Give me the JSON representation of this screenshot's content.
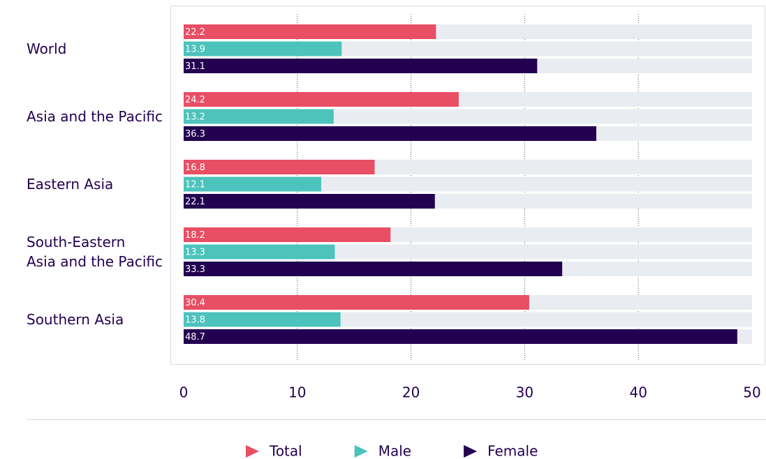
{
  "chart_data": {
    "type": "bar",
    "orientation": "horizontal",
    "categories": [
      "World",
      "Asia and the Pacific",
      "Eastern Asia",
      "South-Eastern\nAsia and the Pacific",
      "Southern Asia"
    ],
    "series": [
      {
        "name": "Total",
        "color": "#e84e64",
        "values": [
          22.2,
          24.2,
          16.8,
          18.2,
          30.4
        ]
      },
      {
        "name": "Male",
        "color": "#4cc3bc",
        "values": [
          13.9,
          13.2,
          12.1,
          13.3,
          13.8
        ]
      },
      {
        "name": "Female",
        "color": "#230050",
        "values": [
          31.1,
          36.3,
          22.1,
          33.3,
          48.7
        ]
      }
    ],
    "xlim": [
      0,
      50
    ],
    "xticks": [
      0,
      10,
      20,
      30,
      40,
      50
    ],
    "grid": true,
    "legend": "bottom"
  }
}
